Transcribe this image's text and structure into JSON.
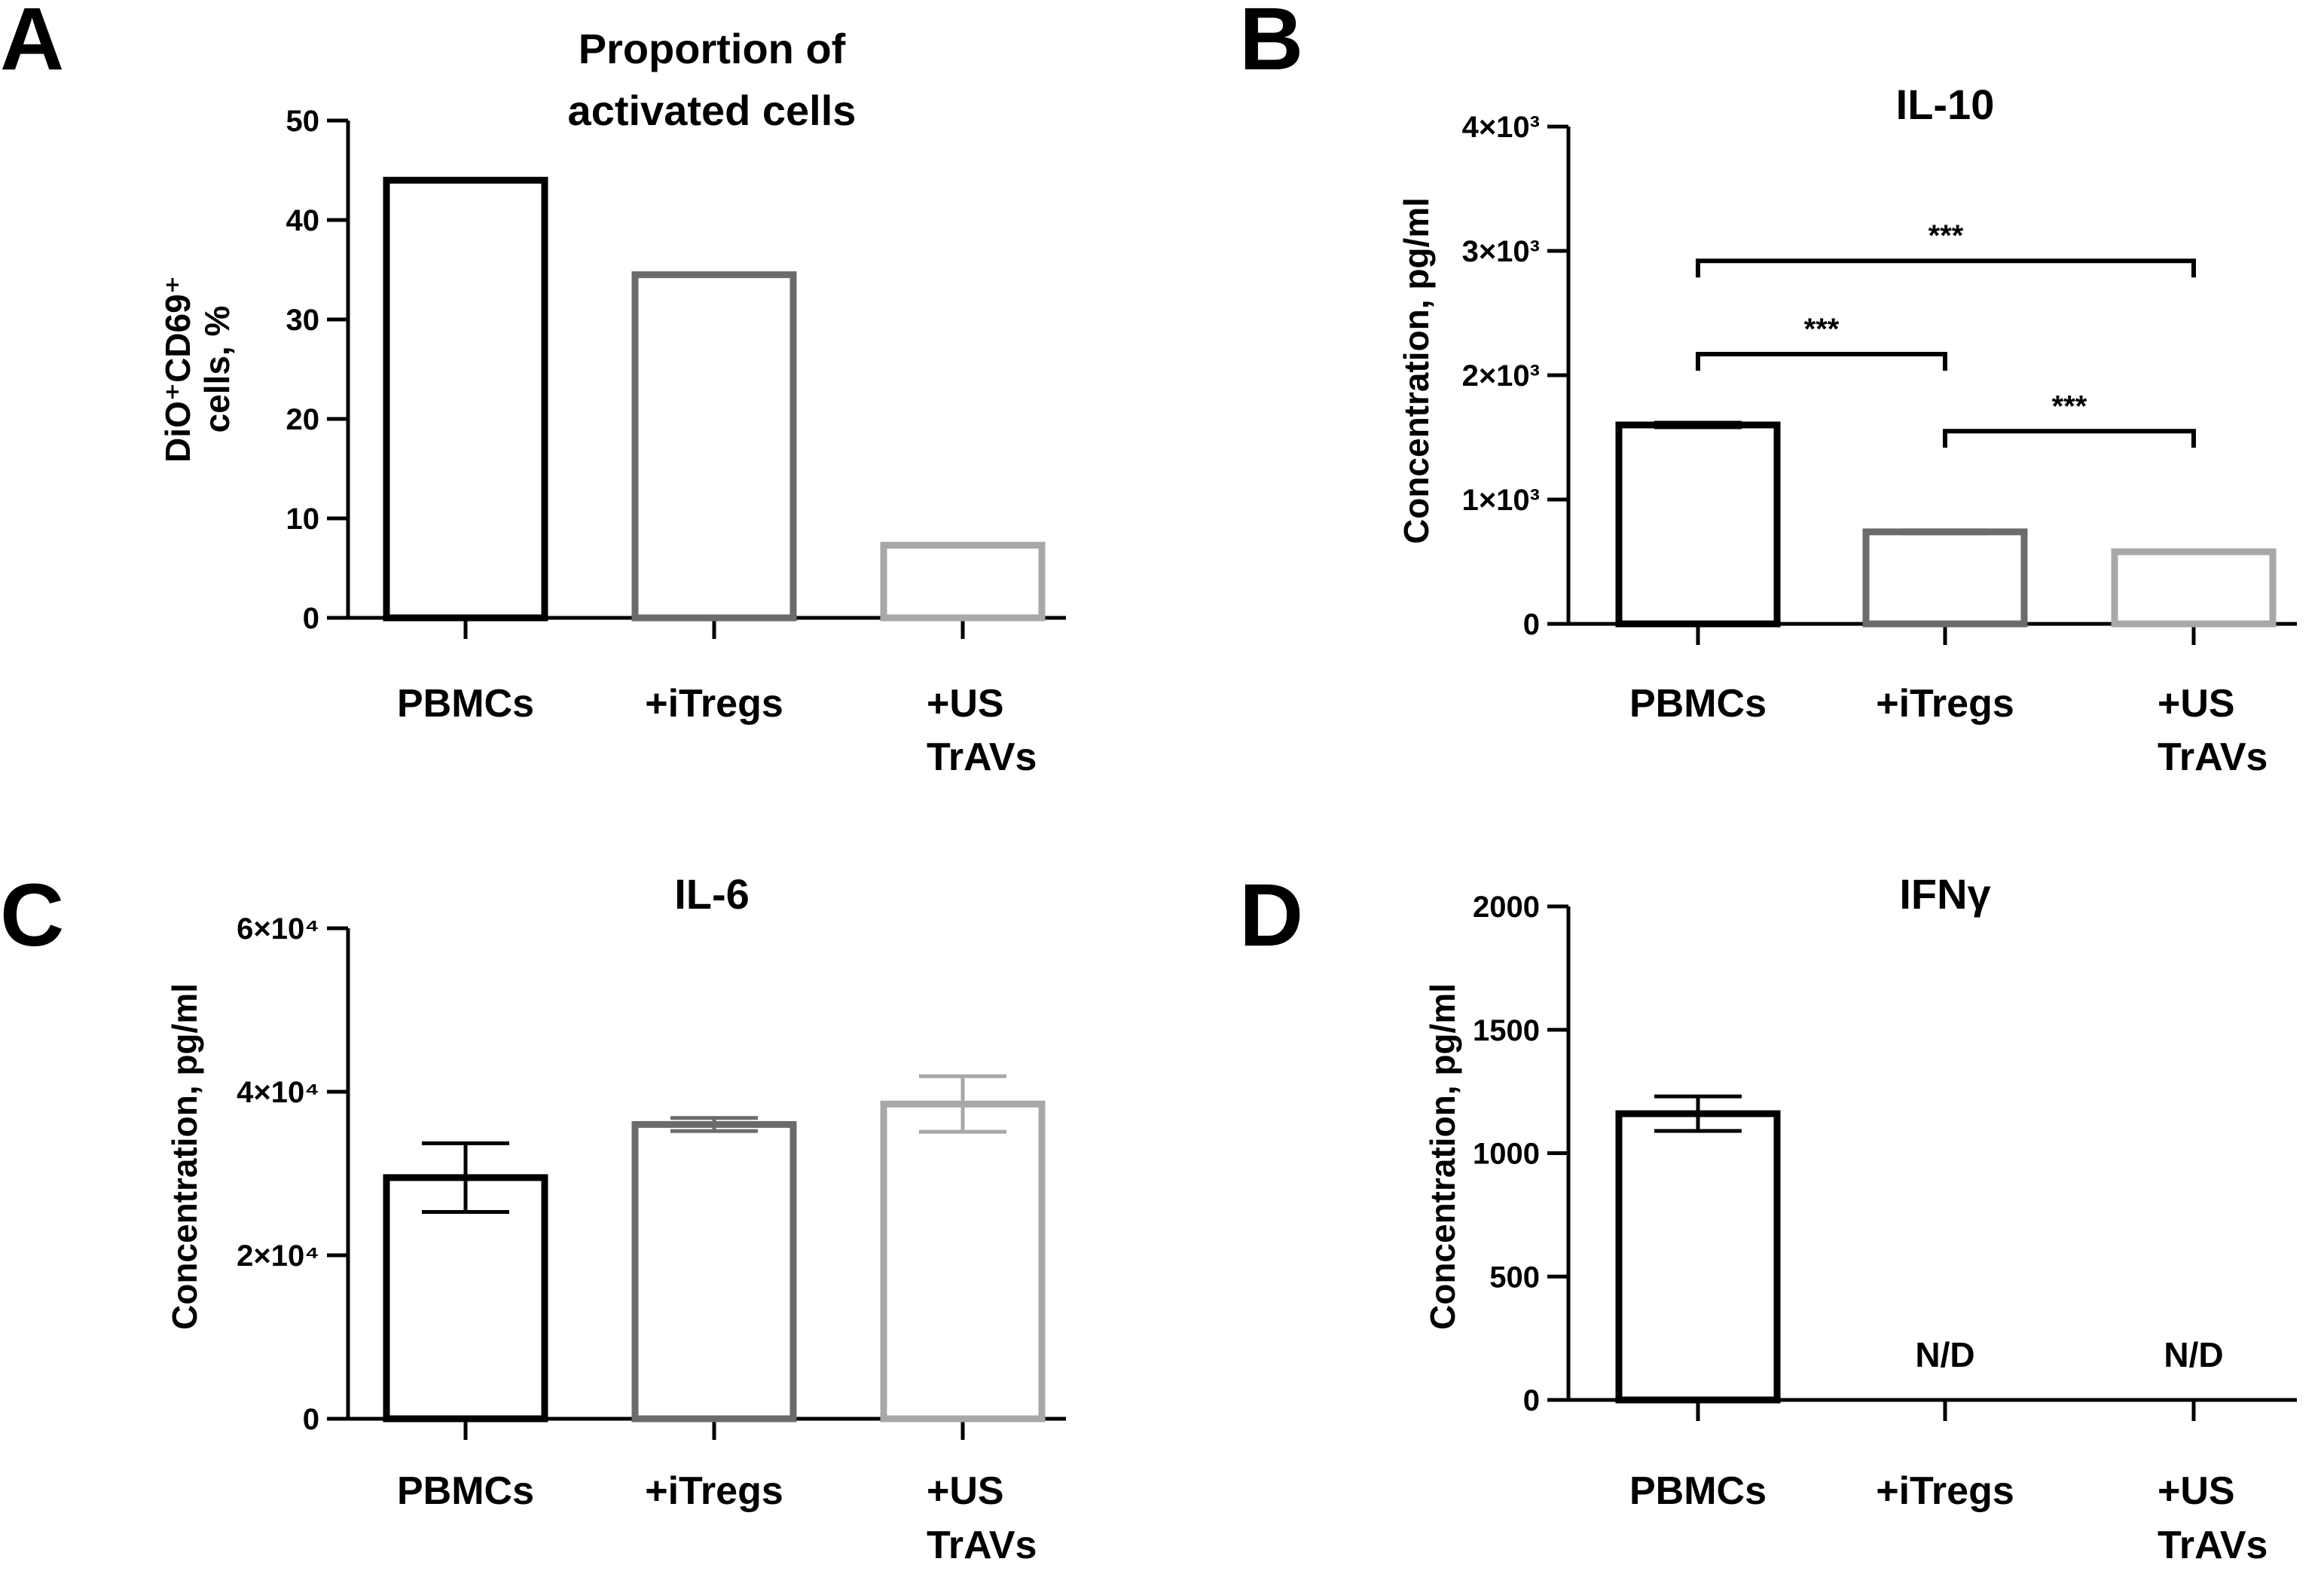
{
  "chart_data": [
    {
      "panel": "A",
      "type": "bar",
      "title": [
        "Proportion of",
        "activated cells"
      ],
      "ylabel": [
        "DiO⁺CD69⁺",
        "cells, %"
      ],
      "xlabel": "",
      "categories": [
        [
          "PBMCs"
        ],
        [
          "+iTregs"
        ],
        [
          "+US",
          "TrAVs"
        ]
      ],
      "values": [
        44,
        34.5,
        7.3
      ],
      "errors": [
        null,
        null,
        null
      ],
      "ylim": [
        0,
        50
      ],
      "yticks": [
        0,
        10,
        20,
        30,
        40,
        50
      ],
      "ytick_labels": [
        "0",
        "10",
        "20",
        "30",
        "40",
        "50"
      ],
      "bar_colors": [
        "#000000",
        "#6b6b6b",
        "#a8a8a8"
      ],
      "annotations": [],
      "not_detected_label": "N/D",
      "not_detected": [
        false,
        false,
        false
      ],
      "grid": false
    },
    {
      "panel": "B",
      "type": "bar",
      "title": [
        "IL-10"
      ],
      "ylabel": [
        "Concentration, pg/ml"
      ],
      "xlabel": "",
      "categories": [
        [
          "PBMCs"
        ],
        [
          "+iTregs"
        ],
        [
          "+US",
          "TrAVs"
        ]
      ],
      "values": [
        1600,
        740,
        580
      ],
      "errors": [
        18,
        12,
        10
      ],
      "ylim": [
        0,
        4000
      ],
      "yticks": [
        0,
        1000,
        2000,
        3000,
        4000
      ],
      "ytick_labels": [
        "0",
        "1×10³",
        "2×10³",
        "3×10³",
        "4×10³"
      ],
      "bar_colors": [
        "#000000",
        "#6b6b6b",
        "#a8a8a8"
      ],
      "annotations": [
        {
          "from": 0,
          "to": 2,
          "y": 2920,
          "label": "***"
        },
        {
          "from": 0,
          "to": 1,
          "y": 2170,
          "label": "***"
        },
        {
          "from": 1,
          "to": 2,
          "y": 1550,
          "label": "***"
        }
      ],
      "not_detected_label": "N/D",
      "not_detected": [
        false,
        false,
        false
      ],
      "grid": false
    },
    {
      "panel": "C",
      "type": "bar",
      "title": [
        "IL-6"
      ],
      "ylabel": [
        "Concentration, pg/ml"
      ],
      "xlabel": "",
      "categories": [
        [
          "PBMCs"
        ],
        [
          "+iTregs"
        ],
        [
          "+US",
          "TrAVs"
        ]
      ],
      "values": [
        29500,
        36000,
        38500
      ],
      "errors": [
        4200,
        800,
        3400
      ],
      "ylim": [
        0,
        60000
      ],
      "yticks": [
        0,
        20000,
        40000,
        60000
      ],
      "ytick_labels": [
        "0",
        "2×10⁴",
        "4×10⁴",
        "6×10⁴"
      ],
      "bar_colors": [
        "#000000",
        "#6b6b6b",
        "#a8a8a8"
      ],
      "annotations": [],
      "not_detected_label": "N/D",
      "not_detected": [
        false,
        false,
        false
      ],
      "grid": false
    },
    {
      "panel": "D",
      "type": "bar",
      "title": [
        "IFNγ"
      ],
      "ylabel": [
        "Concentration, pg/ml"
      ],
      "xlabel": "",
      "categories": [
        [
          "PBMCs"
        ],
        [
          "+iTregs"
        ],
        [
          "+US",
          "TrAVs"
        ]
      ],
      "values": [
        1160,
        null,
        null
      ],
      "errors": [
        70,
        null,
        null
      ],
      "ylim": [
        0,
        2000
      ],
      "yticks": [
        0,
        500,
        1000,
        1500,
        2000
      ],
      "ytick_labels": [
        "0",
        "500",
        "1000",
        "1500",
        "2000"
      ],
      "bar_colors": [
        "#000000",
        "#6b6b6b",
        "#a8a8a8"
      ],
      "annotations": [],
      "not_detected_label": "N/D",
      "not_detected": [
        false,
        true,
        true
      ],
      "grid": false
    }
  ]
}
